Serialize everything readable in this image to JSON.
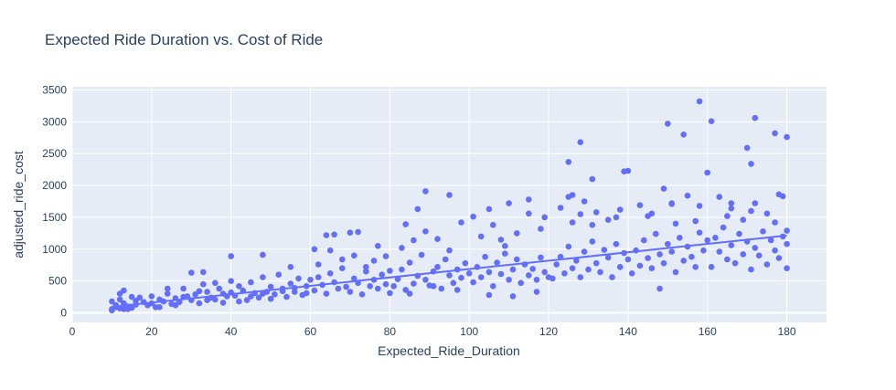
{
  "chart_data": {
    "type": "scatter",
    "title": "Expected Ride Duration vs. Cost of Ride",
    "xlabel": "Expected_Ride_Duration",
    "ylabel": "adjusted_ride_cost",
    "xlim": [
      0,
      190
    ],
    "ylim": [
      -150,
      3550
    ],
    "xticks": [
      0,
      20,
      40,
      60,
      80,
      100,
      120,
      140,
      160,
      180
    ],
    "yticks": [
      0,
      500,
      1000,
      1500,
      2000,
      2500,
      3000,
      3500
    ],
    "grid": true,
    "trendline": {
      "type": "ols",
      "x": [
        10,
        180
      ],
      "y": [
        95,
        1215
      ]
    },
    "colors": {
      "marker": "#636efa",
      "plot_bg": "#e5ecf6",
      "grid": "#ffffff",
      "text": "#2a3f5f"
    },
    "series": [
      {
        "x": [
          10,
          10,
          11,
          11,
          12,
          12,
          13,
          13,
          14,
          15,
          16,
          17,
          10,
          12,
          14,
          16,
          11,
          13,
          15,
          18,
          19,
          20,
          21,
          22,
          23,
          24,
          25,
          26,
          27,
          28,
          29,
          30,
          31,
          32,
          33,
          34,
          35,
          36,
          37,
          38,
          39,
          40,
          20,
          22,
          24,
          26,
          28,
          30,
          32,
          34,
          36,
          38,
          40,
          41,
          42,
          43,
          44,
          45,
          46,
          47,
          48,
          49,
          50,
          51,
          52,
          53,
          54,
          55,
          56,
          57,
          58,
          59,
          60,
          42,
          45,
          48,
          50,
          53,
          56,
          59,
          61,
          62,
          63,
          64,
          65,
          66,
          67,
          68,
          69,
          70,
          71,
          72,
          73,
          74,
          75,
          76,
          77,
          78,
          79,
          80,
          62,
          65,
          68,
          71,
          74,
          77,
          80,
          64,
          70,
          76,
          81,
          82,
          83,
          84,
          85,
          86,
          87,
          88,
          89,
          90,
          91,
          92,
          93,
          94,
          95,
          96,
          97,
          98,
          99,
          100,
          83,
          86,
          89,
          92,
          95,
          98,
          85,
          91,
          97,
          101,
          102,
          103,
          104,
          105,
          106,
          107,
          108,
          109,
          110,
          111,
          112,
          113,
          114,
          115,
          116,
          117,
          118,
          119,
          120,
          103,
          106,
          109,
          112,
          115,
          118,
          105,
          111,
          117,
          108,
          121,
          122,
          123,
          124,
          125,
          126,
          127,
          128,
          129,
          130,
          131,
          132,
          133,
          134,
          135,
          136,
          137,
          138,
          139,
          140,
          123,
          126,
          129,
          132,
          135,
          138,
          125,
          131,
          137,
          128,
          141,
          142,
          143,
          144,
          145,
          146,
          147,
          148,
          149,
          150,
          151,
          152,
          153,
          154,
          155,
          156,
          157,
          158,
          159,
          160,
          143,
          146,
          149,
          152,
          155,
          158,
          145,
          151,
          157,
          148,
          161,
          162,
          163,
          164,
          165,
          166,
          167,
          168,
          169,
          170,
          171,
          172,
          173,
          174,
          175,
          176,
          177,
          178,
          179,
          180,
          163,
          166,
          169,
          172,
          175,
          178,
          165,
          171,
          177,
          180,
          180,
          33,
          40,
          48,
          55,
          61,
          66,
          72,
          79,
          84,
          87,
          89,
          95,
          101,
          105,
          110,
          115,
          119,
          125,
          126,
          128,
          131,
          139,
          140,
          150,
          151,
          154,
          158,
          160,
          161,
          166,
          170,
          171,
          172,
          177,
          179,
          180
        ],
        "y": [
          60,
          180,
          120,
          90,
          210,
          70,
          150,
          350,
          100,
          80,
          130,
          240,
          40,
          300,
          60,
          190,
          110,
          60,
          250,
          170,
          120,
          260,
          90,
          210,
          180,
          300,
          140,
          230,
          170,
          380,
          260,
          200,
          290,
          150,
          450,
          330,
          240,
          210,
          380,
          300,
          260,
          500,
          150,
          90,
          380,
          120,
          250,
          630,
          340,
          200,
          470,
          160,
          320,
          270,
          420,
          350,
          200,
          480,
          310,
          240,
          560,
          330,
          410,
          290,
          600,
          380,
          250,
          460,
          330,
          540,
          280,
          420,
          520,
          180,
          260,
          300,
          220,
          340,
          390,
          310,
          350,
          560,
          440,
          300,
          620,
          480,
          380,
          700,
          410,
          330,
          540,
          470,
          290,
          650,
          420,
          520,
          380,
          600,
          450,
          310,
          760,
          980,
          840,
          900,
          720,
          1050,
          660,
          1220,
          1260,
          820,
          420,
          530,
          680,
          360,
          790,
          460,
          580,
          910,
          520,
          430,
          650,
          720,
          380,
          840,
          590,
          470,
          680,
          550,
          780,
          620,
          1020,
          1140,
          1280,
          1160,
          980,
          1420,
          300,
          420,
          360,
          480,
          720,
          560,
          880,
          640,
          420,
          790,
          610,
          930,
          520,
          680,
          840,
          470,
          760,
          590,
          690,
          520,
          870,
          640,
          560,
          1200,
          1380,
          1050,
          1250,
          1560,
          1320,
          280,
          260,
          330,
          1150,
          540,
          760,
          880,
          620,
          1040,
          700,
          820,
          560,
          960,
          680,
          1120,
          780,
          640,
          990,
          870,
          560,
          1080,
          720,
          940,
          840,
          1650,
          1420,
          1750,
          1580,
          1460,
          1620,
          1820,
          1380,
          1500,
          2680,
          620,
          980,
          740,
          1140,
          860,
          700,
          1240,
          920,
          780,
          1080,
          960,
          640,
          1180,
          820,
          1040,
          880,
          720,
          1260,
          980,
          1140,
          1690,
          1560,
          1950,
          1400,
          1840,
          1680,
          1520,
          1710,
          1440,
          380,
          720,
          1180,
          960,
          1340,
          840,
          1060,
          780,
          1240,
          920,
          1120,
          680,
          1020,
          900,
          1280,
          760,
          1140,
          980,
          860,
          1200,
          1080,
          1820,
          1640,
          1460,
          1720,
          1560,
          1860,
          1520,
          1600,
          1420,
          700,
          1290,
          640,
          890,
          910,
          720,
          1000,
          1230,
          1270,
          890,
          1390,
          1630,
          1910,
          1850,
          1510,
          1630,
          1720,
          1780,
          1500,
          2370,
          1850,
          1550,
          2100,
          2220,
          2230,
          2970,
          1720,
          2800,
          3320,
          2200,
          3010,
          1720,
          2590,
          2340,
          3060,
          2820,
          1830,
          2760
        ]
      }
    ]
  }
}
